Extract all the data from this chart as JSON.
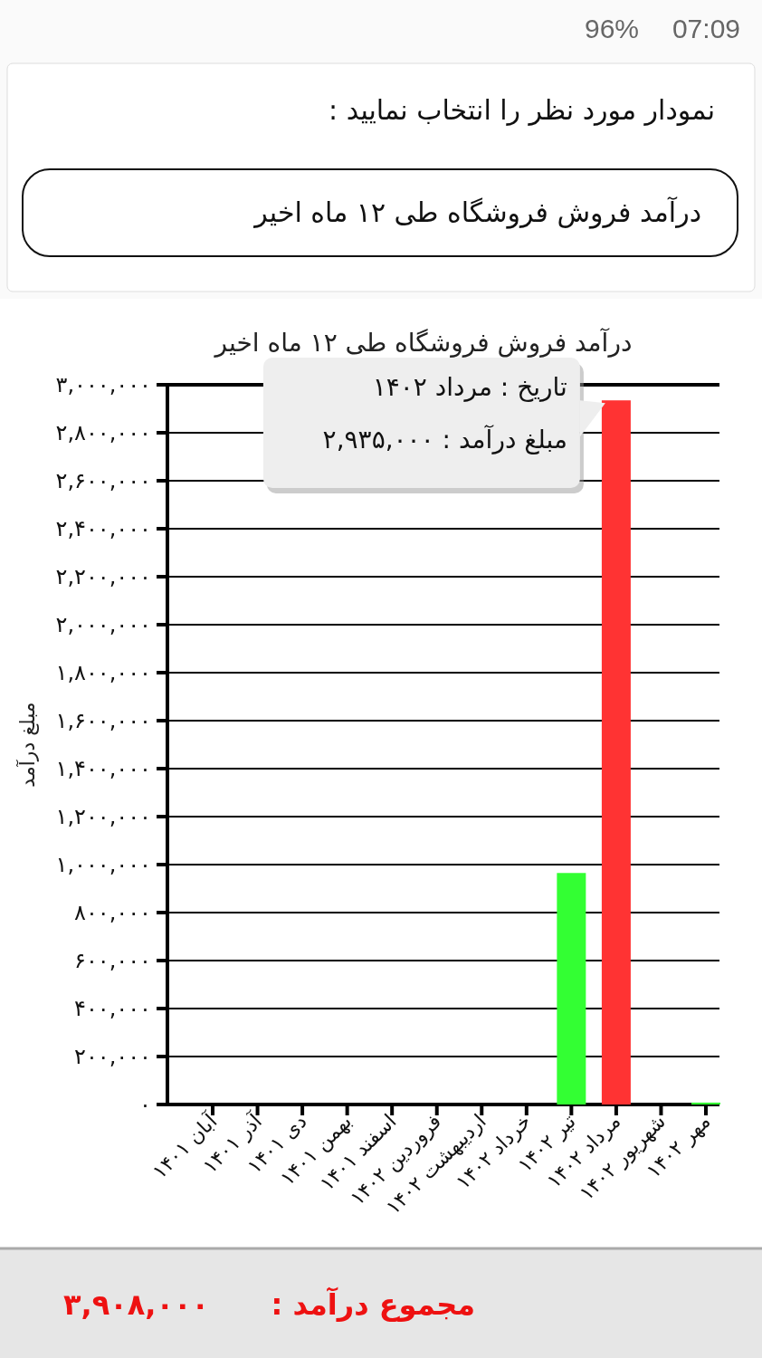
{
  "chart_data": {
    "type": "bar",
    "title": "درآمد فروش فروشگاه طی ۱۲ ماه اخیر",
    "ylabel": "مبلغ درآمد",
    "categories": [
      "آبان ۱۴۰۱",
      "آذر ۱۴۰۱",
      "دی ۱۴۰۱",
      "بهمن ۱۴۰۱",
      "اسفند ۱۴۰۱",
      "فروردین ۱۴۰۲",
      "اردیبهشت ۱۴۰۲",
      "خرداد ۱۴۰۲",
      "تیر ۱۴۰۲",
      "مرداد ۱۴۰۲",
      "شهریور ۱۴۰۲",
      "مهر ۱۴۰۲"
    ],
    "values": [
      0,
      0,
      0,
      0,
      0,
      0,
      0,
      0,
      965000,
      2935000,
      0,
      8000
    ],
    "colors": [
      "#33ff33",
      "#33ff33",
      "#33ff33",
      "#33ff33",
      "#33ff33",
      "#33ff33",
      "#33ff33",
      "#33ff33",
      "#33ff33",
      "#ff3333",
      "#33ff33",
      "#33ff33"
    ],
    "ylim": [
      0,
      3000000
    ],
    "yticks": [
      {
        "value": 0,
        "label": "۰"
      },
      {
        "value": 200000,
        "label": "۲۰۰,۰۰۰"
      },
      {
        "value": 400000,
        "label": "۴۰۰,۰۰۰"
      },
      {
        "value": 600000,
        "label": "۶۰۰,۰۰۰"
      },
      {
        "value": 800000,
        "label": "۸۰۰,۰۰۰"
      },
      {
        "value": 1000000,
        "label": "۱,۰۰۰,۰۰۰"
      },
      {
        "value": 1200000,
        "label": "۱,۲۰۰,۰۰۰"
      },
      {
        "value": 1400000,
        "label": "۱,۴۰۰,۰۰۰"
      },
      {
        "value": 1600000,
        "label": "۱,۶۰۰,۰۰۰"
      },
      {
        "value": 1800000,
        "label": "۱,۸۰۰,۰۰۰"
      },
      {
        "value": 2000000,
        "label": "۲,۰۰۰,۰۰۰"
      },
      {
        "value": 2200000,
        "label": "۲,۲۰۰,۰۰۰"
      },
      {
        "value": 2400000,
        "label": "۲,۴۰۰,۰۰۰"
      },
      {
        "value": 2600000,
        "label": "۲,۶۰۰,۰۰۰"
      },
      {
        "value": 2800000,
        "label": "۲,۸۰۰,۰۰۰"
      },
      {
        "value": 3000000,
        "label": "۳,۰۰۰,۰۰۰"
      }
    ],
    "grid": "y",
    "annotations": [
      "96%",
      "07:09",
      "نمودار مورد نظر را انتخاب نمایید :",
      "درآمد فروش فروشگاه طی ۱۲ ماه اخیر",
      {
        "text": "تاریخ : مرداد ۱۴۰۲",
        "x": "مرداد ۱۴۰۲",
        "y": 2935000
      },
      {
        "text": "مبلغ درآمد : ۲,۹۳۵,۰۰۰",
        "x": "مرداد ۱۴۰۲",
        "y": 2935000
      },
      "مجموع درآمد :",
      "۳,۹۰۸,۰۰۰"
    ]
  }
}
